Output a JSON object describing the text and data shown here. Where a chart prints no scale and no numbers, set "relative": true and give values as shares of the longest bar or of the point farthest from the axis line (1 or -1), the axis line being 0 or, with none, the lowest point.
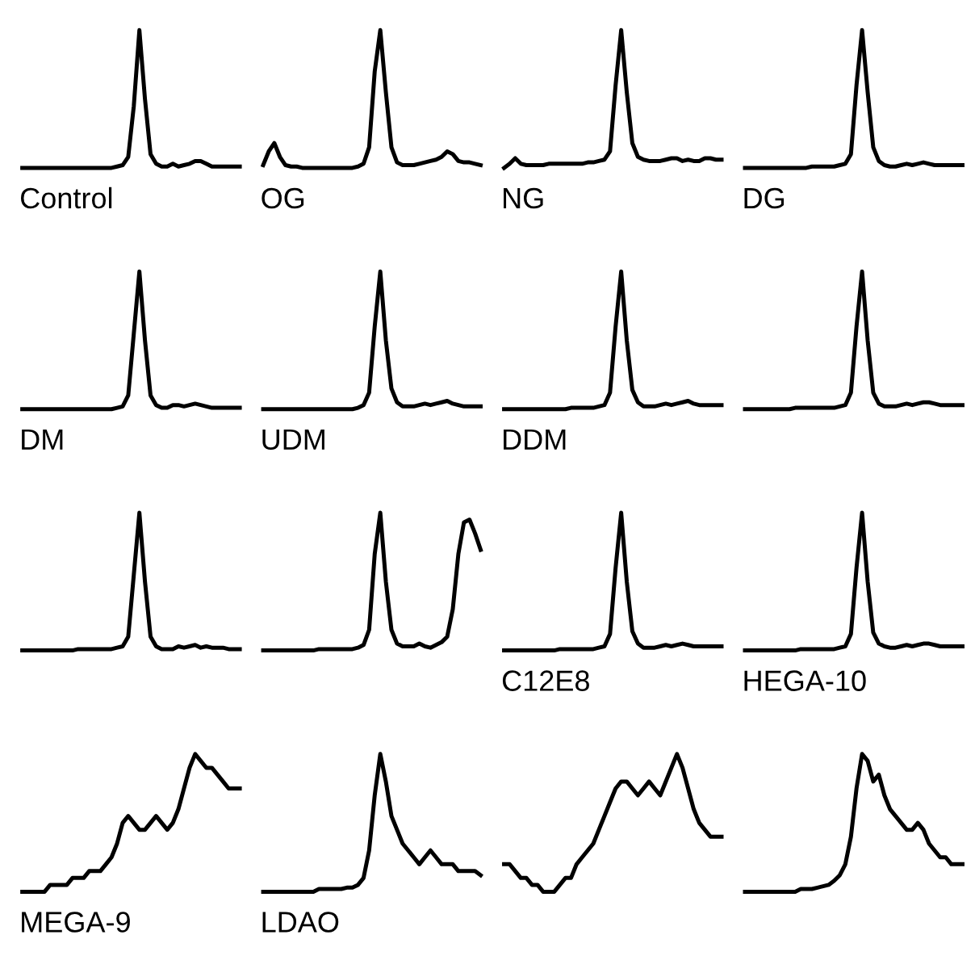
{
  "chart_data": [
    {
      "type": "line",
      "relative": true,
      "xlabel": "Control",
      "categories": [
        null,
        null,
        null,
        null,
        null,
        null,
        null,
        null,
        null,
        null,
        null,
        null,
        null,
        null,
        null,
        null,
        null,
        null,
        null,
        null,
        null,
        null,
        null,
        null,
        null,
        null,
        null,
        null,
        null,
        null,
        null,
        null,
        null,
        null,
        null,
        null,
        null,
        null,
        null,
        null
      ],
      "series": [
        {
          "color": "#000000",
          "values": [
            0,
            0,
            0,
            0,
            0,
            0,
            0,
            0,
            0,
            0,
            0,
            0,
            0,
            0,
            0,
            0,
            0,
            0.01,
            0.02,
            0.08,
            0.45,
            1,
            0.5,
            0.1,
            0.03,
            0.01,
            0.01,
            0.03,
            0.01,
            0.02,
            0.03,
            0.05,
            0.05,
            0.03,
            0.01,
            0.01,
            0.01,
            0.01,
            0.01,
            0.01
          ]
        }
      ]
    },
    {
      "type": "line",
      "relative": true,
      "xlabel": "OG",
      "categories": [
        null,
        null,
        null,
        null,
        null,
        null,
        null,
        null,
        null,
        null,
        null,
        null,
        null,
        null,
        null,
        null,
        null,
        null,
        null,
        null,
        null,
        null,
        null,
        null,
        null,
        null,
        null,
        null,
        null,
        null,
        null,
        null,
        null,
        null,
        null,
        null,
        null,
        null,
        null,
        null
      ],
      "series": [
        {
          "color": "#000000",
          "values": [
            0.02,
            0.12,
            0.18,
            0.08,
            0.02,
            0.01,
            0.01,
            0,
            0,
            0,
            0,
            0,
            0,
            0,
            0,
            0,
            0,
            0.01,
            0.03,
            0.15,
            0.7,
            1,
            0.55,
            0.15,
            0.04,
            0.02,
            0.02,
            0.02,
            0.03,
            0.04,
            0.05,
            0.06,
            0.08,
            0.12,
            0.1,
            0.05,
            0.04,
            0.04,
            0.03,
            0.02
          ]
        }
      ]
    },
    {
      "type": "line",
      "relative": true,
      "xlabel": "NG",
      "categories": [
        null,
        null,
        null,
        null,
        null,
        null,
        null,
        null,
        null,
        null,
        null,
        null,
        null,
        null,
        null,
        null,
        null,
        null,
        null,
        null,
        null,
        null,
        null,
        null,
        null,
        null,
        null,
        null,
        null,
        null,
        null,
        null,
        null,
        null,
        null,
        null,
        null,
        null,
        null,
        null
      ],
      "series": [
        {
          "color": "#000000",
          "values": [
            0,
            0.03,
            0.07,
            0.03,
            0.02,
            0.02,
            0.02,
            0.02,
            0.03,
            0.03,
            0.03,
            0.03,
            0.03,
            0.03,
            0.03,
            0.04,
            0.04,
            0.05,
            0.06,
            0.12,
            0.6,
            1,
            0.55,
            0.18,
            0.08,
            0.06,
            0.05,
            0.05,
            0.05,
            0.06,
            0.07,
            0.07,
            0.05,
            0.06,
            0.05,
            0.05,
            0.07,
            0.07,
            0.06,
            0.06
          ]
        }
      ]
    },
    {
      "type": "line",
      "relative": true,
      "xlabel": "DG",
      "categories": [
        null,
        null,
        null,
        null,
        null,
        null,
        null,
        null,
        null,
        null,
        null,
        null,
        null,
        null,
        null,
        null,
        null,
        null,
        null,
        null,
        null,
        null,
        null,
        null,
        null,
        null,
        null,
        null,
        null,
        null,
        null,
        null,
        null,
        null,
        null,
        null,
        null,
        null,
        null,
        null
      ],
      "series": [
        {
          "color": "#000000",
          "values": [
            0,
            0,
            0,
            0,
            0,
            0,
            0,
            0,
            0,
            0,
            0,
            0,
            0.01,
            0.01,
            0.01,
            0.01,
            0.01,
            0.02,
            0.03,
            0.1,
            0.6,
            1,
            0.55,
            0.15,
            0.05,
            0.02,
            0.01,
            0.01,
            0.02,
            0.03,
            0.02,
            0.03,
            0.04,
            0.03,
            0.02,
            0.02,
            0.02,
            0.02,
            0.02,
            0.02
          ]
        }
      ]
    },
    {
      "type": "line",
      "relative": true,
      "xlabel": "DM",
      "categories": [
        null,
        null,
        null,
        null,
        null,
        null,
        null,
        null,
        null,
        null,
        null,
        null,
        null,
        null,
        null,
        null,
        null,
        null,
        null,
        null,
        null,
        null,
        null,
        null,
        null,
        null,
        null,
        null,
        null,
        null,
        null,
        null,
        null,
        null,
        null,
        null,
        null,
        null,
        null,
        null
      ],
      "series": [
        {
          "color": "#000000",
          "values": [
            0,
            0,
            0,
            0,
            0,
            0,
            0,
            0,
            0,
            0,
            0,
            0,
            0,
            0,
            0,
            0,
            0,
            0.01,
            0.02,
            0.1,
            0.55,
            1,
            0.5,
            0.1,
            0.03,
            0.01,
            0.01,
            0.03,
            0.03,
            0.02,
            0.03,
            0.04,
            0.03,
            0.02,
            0.01,
            0.01,
            0.01,
            0.01,
            0.01,
            0.01
          ]
        }
      ]
    },
    {
      "type": "line",
      "relative": true,
      "xlabel": "UDM",
      "categories": [
        null,
        null,
        null,
        null,
        null,
        null,
        null,
        null,
        null,
        null,
        null,
        null,
        null,
        null,
        null,
        null,
        null,
        null,
        null,
        null,
        null,
        null,
        null,
        null,
        null,
        null,
        null,
        null,
        null,
        null,
        null,
        null,
        null,
        null,
        null,
        null,
        null,
        null,
        null,
        null
      ],
      "series": [
        {
          "color": "#000000",
          "values": [
            0,
            0,
            0,
            0,
            0,
            0,
            0,
            0,
            0,
            0,
            0,
            0,
            0,
            0,
            0,
            0,
            0,
            0.01,
            0.03,
            0.12,
            0.6,
            1,
            0.5,
            0.15,
            0.05,
            0.02,
            0.02,
            0.02,
            0.03,
            0.04,
            0.03,
            0.04,
            0.05,
            0.06,
            0.04,
            0.03,
            0.02,
            0.02,
            0.02,
            0.02
          ]
        }
      ]
    },
    {
      "type": "line",
      "relative": true,
      "xlabel": "DDM",
      "categories": [
        null,
        null,
        null,
        null,
        null,
        null,
        null,
        null,
        null,
        null,
        null,
        null,
        null,
        null,
        null,
        null,
        null,
        null,
        null,
        null,
        null,
        null,
        null,
        null,
        null,
        null,
        null,
        null,
        null,
        null,
        null,
        null,
        null,
        null,
        null,
        null,
        null,
        null,
        null,
        null
      ],
      "series": [
        {
          "color": "#000000",
          "values": [
            0,
            0,
            0,
            0,
            0,
            0,
            0,
            0,
            0,
            0,
            0,
            0,
            0.01,
            0.01,
            0.01,
            0.01,
            0.01,
            0.02,
            0.03,
            0.12,
            0.6,
            1,
            0.5,
            0.14,
            0.05,
            0.02,
            0.02,
            0.02,
            0.03,
            0.04,
            0.03,
            0.04,
            0.05,
            0.06,
            0.04,
            0.03,
            0.03,
            0.03,
            0.03,
            0.03
          ]
        }
      ]
    },
    {
      "type": "line",
      "relative": true,
      "categories": [
        null,
        null,
        null,
        null,
        null,
        null,
        null,
        null,
        null,
        null,
        null,
        null,
        null,
        null,
        null,
        null,
        null,
        null,
        null,
        null,
        null,
        null,
        null,
        null,
        null,
        null,
        null,
        null,
        null,
        null,
        null,
        null,
        null,
        null,
        null,
        null,
        null,
        null,
        null,
        null
      ],
      "series": [
        {
          "color": "#000000",
          "values": [
            0,
            0,
            0,
            0,
            0,
            0,
            0,
            0,
            0,
            0.01,
            0.01,
            0.01,
            0.01,
            0.01,
            0.01,
            0.01,
            0.01,
            0.02,
            0.03,
            0.12,
            0.6,
            1,
            0.5,
            0.12,
            0.04,
            0.02,
            0.02,
            0.02,
            0.03,
            0.04,
            0.03,
            0.04,
            0.05,
            0.05,
            0.04,
            0.03,
            0.03,
            0.03,
            0.03,
            0.03
          ]
        }
      ]
    },
    {
      "type": "line",
      "relative": true,
      "categories": [
        null,
        null,
        null,
        null,
        null,
        null,
        null,
        null,
        null,
        null,
        null,
        null,
        null,
        null,
        null,
        null,
        null,
        null,
        null,
        null,
        null,
        null,
        null,
        null,
        null,
        null,
        null,
        null,
        null,
        null,
        null,
        null,
        null,
        null,
        null,
        null,
        null,
        null,
        null,
        null
      ],
      "series": [
        {
          "color": "#000000",
          "values": [
            0,
            0,
            0,
            0,
            0,
            0,
            0,
            0,
            0,
            0,
            0.01,
            0.01,
            0.01,
            0.01,
            0.01,
            0.01,
            0.01,
            0.02,
            0.03,
            0.1,
            0.55,
            1,
            0.5,
            0.1,
            0.03,
            0.01,
            0.01,
            0.01,
            0.03,
            0.02,
            0.03,
            0.04,
            0.02,
            0.03,
            0.02,
            0.02,
            0.02,
            0.01,
            0.01,
            0.01
          ]
        }
      ]
    },
    {
      "type": "line",
      "relative": true,
      "categories": [
        null,
        null,
        null,
        null,
        null,
        null,
        null,
        null,
        null,
        null,
        null,
        null,
        null,
        null,
        null,
        null,
        null,
        null,
        null,
        null,
        null,
        null,
        null,
        null,
        null,
        null,
        null,
        null,
        null,
        null,
        null,
        null,
        null,
        null,
        null,
        null,
        null,
        null,
        null,
        null
      ],
      "series": [
        {
          "color": "#000000",
          "values": [
            0,
            0,
            0,
            0,
            0,
            0,
            0,
            0,
            0,
            0,
            0.01,
            0.01,
            0.01,
            0.01,
            0.01,
            0.01,
            0.01,
            0.02,
            0.04,
            0.15,
            0.7,
            1,
            0.5,
            0.15,
            0.05,
            0.03,
            0.03,
            0.03,
            0.05,
            0.03,
            0.02,
            0.04,
            0.06,
            0.1,
            0.3,
            0.7,
            0.93,
            0.95,
            0.85,
            0.73
          ]
        }
      ]
    },
    {
      "type": "line",
      "relative": true,
      "xlabel": "C12E8",
      "categories": [
        null,
        null,
        null,
        null,
        null,
        null,
        null,
        null,
        null,
        null,
        null,
        null,
        null,
        null,
        null,
        null,
        null,
        null,
        null,
        null,
        null,
        null,
        null,
        null,
        null,
        null,
        null,
        null,
        null,
        null,
        null,
        null,
        null,
        null,
        null,
        null,
        null,
        null,
        null,
        null
      ],
      "series": [
        {
          "color": "#000000",
          "values": [
            0,
            0,
            0,
            0,
            0,
            0,
            0,
            0,
            0,
            0,
            0.01,
            0.01,
            0.01,
            0.01,
            0.01,
            0.01,
            0.01,
            0.02,
            0.03,
            0.12,
            0.6,
            1,
            0.5,
            0.14,
            0.05,
            0.02,
            0.02,
            0.02,
            0.03,
            0.04,
            0.03,
            0.04,
            0.05,
            0.04,
            0.03,
            0.03,
            0.03,
            0.03,
            0.03,
            0.03
          ]
        }
      ]
    },
    {
      "type": "line",
      "relative": true,
      "xlabel": "HEGA-10",
      "categories": [
        null,
        null,
        null,
        null,
        null,
        null,
        null,
        null,
        null,
        null,
        null,
        null,
        null,
        null,
        null,
        null,
        null,
        null,
        null,
        null,
        null,
        null,
        null,
        null,
        null,
        null,
        null,
        null,
        null,
        null,
        null,
        null,
        null,
        null,
        null,
        null,
        null,
        null,
        null,
        null
      ],
      "series": [
        {
          "color": "#000000",
          "values": [
            0,
            0,
            0,
            0,
            0,
            0,
            0,
            0,
            0,
            0,
            0.01,
            0.01,
            0.01,
            0.01,
            0.01,
            0.01,
            0.01,
            0.02,
            0.03,
            0.12,
            0.6,
            1,
            0.5,
            0.13,
            0.05,
            0.03,
            0.02,
            0.02,
            0.03,
            0.04,
            0.03,
            0.04,
            0.05,
            0.05,
            0.04,
            0.03,
            0.03,
            0.03,
            0.03,
            0.03
          ]
        }
      ]
    },
    {
      "type": "line",
      "relative": true,
      "xlabel": "MEGA-9",
      "categories": [
        null,
        null,
        null,
        null,
        null,
        null,
        null,
        null,
        null,
        null,
        null,
        null,
        null,
        null,
        null,
        null,
        null,
        null,
        null,
        null,
        null,
        null,
        null,
        null,
        null,
        null,
        null,
        null,
        null,
        null,
        null,
        null,
        null,
        null,
        null,
        null,
        null,
        null,
        null,
        null
      ],
      "series": [
        {
          "color": "#000000",
          "values": [
            0,
            0,
            0,
            0,
            0,
            0.05,
            0.05,
            0.05,
            0.05,
            0.1,
            0.1,
            0.1,
            0.15,
            0.15,
            0.15,
            0.2,
            0.25,
            0.35,
            0.5,
            0.55,
            0.5,
            0.45,
            0.45,
            0.5,
            0.55,
            0.5,
            0.45,
            0.5,
            0.6,
            0.75,
            0.9,
            1,
            0.95,
            0.9,
            0.9,
            0.85,
            0.8,
            0.75,
            0.75,
            0.75
          ]
        }
      ]
    },
    {
      "type": "line",
      "relative": true,
      "xlabel": "LDAO",
      "categories": [
        null,
        null,
        null,
        null,
        null,
        null,
        null,
        null,
        null,
        null,
        null,
        null,
        null,
        null,
        null,
        null,
        null,
        null,
        null,
        null,
        null,
        null,
        null,
        null,
        null,
        null,
        null,
        null,
        null,
        null,
        null,
        null,
        null,
        null,
        null,
        null,
        null,
        null,
        null,
        null
      ],
      "series": [
        {
          "color": "#000000",
          "values": [
            0,
            0,
            0,
            0,
            0,
            0,
            0,
            0,
            0,
            0,
            0.02,
            0.02,
            0.02,
            0.02,
            0.02,
            0.03,
            0.03,
            0.05,
            0.1,
            0.3,
            0.7,
            1,
            0.8,
            0.55,
            0.45,
            0.35,
            0.3,
            0.25,
            0.2,
            0.25,
            0.3,
            0.25,
            0.2,
            0.2,
            0.2,
            0.15,
            0.15,
            0.15,
            0.15,
            0.12
          ]
        }
      ]
    },
    {
      "type": "line",
      "relative": true,
      "categories": [
        null,
        null,
        null,
        null,
        null,
        null,
        null,
        null,
        null,
        null,
        null,
        null,
        null,
        null,
        null,
        null,
        null,
        null,
        null,
        null,
        null,
        null,
        null,
        null,
        null,
        null,
        null,
        null,
        null,
        null,
        null,
        null,
        null,
        null,
        null,
        null,
        null,
        null,
        null,
        null
      ],
      "series": [
        {
          "color": "#000000",
          "values": [
            0.2,
            0.2,
            0.15,
            0.1,
            0.1,
            0.05,
            0.05,
            0,
            0,
            0,
            0.05,
            0.1,
            0.1,
            0.2,
            0.25,
            0.3,
            0.35,
            0.45,
            0.55,
            0.65,
            0.75,
            0.8,
            0.8,
            0.75,
            0.7,
            0.75,
            0.8,
            0.75,
            0.7,
            0.8,
            0.9,
            1,
            0.9,
            0.75,
            0.6,
            0.5,
            0.45,
            0.4,
            0.4,
            0.4
          ]
        }
      ]
    },
    {
      "type": "line",
      "relative": true,
      "categories": [
        null,
        null,
        null,
        null,
        null,
        null,
        null,
        null,
        null,
        null,
        null,
        null,
        null,
        null,
        null,
        null,
        null,
        null,
        null,
        null,
        null,
        null,
        null,
        null,
        null,
        null,
        null,
        null,
        null,
        null,
        null,
        null,
        null,
        null,
        null,
        null,
        null,
        null,
        null,
        null
      ],
      "series": [
        {
          "color": "#000000",
          "values": [
            0,
            0,
            0,
            0,
            0,
            0,
            0,
            0,
            0,
            0,
            0.02,
            0.02,
            0.02,
            0.03,
            0.04,
            0.05,
            0.08,
            0.12,
            0.2,
            0.4,
            0.75,
            1,
            0.95,
            0.8,
            0.85,
            0.7,
            0.6,
            0.55,
            0.5,
            0.45,
            0.45,
            0.5,
            0.45,
            0.35,
            0.3,
            0.25,
            0.25,
            0.2,
            0.2,
            0.2
          ]
        }
      ]
    }
  ]
}
